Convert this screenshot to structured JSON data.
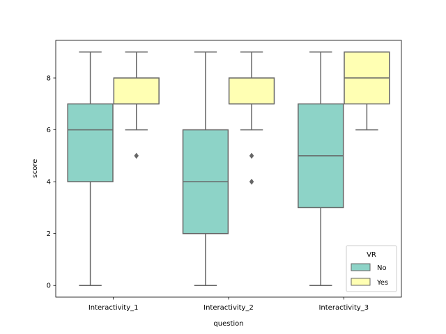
{
  "chart_data": {
    "type": "box",
    "title": "",
    "xlabel": "question",
    "ylabel": "score",
    "categories": [
      "Interactivity_1",
      "Interactivity_2",
      "Interactivity_3"
    ],
    "yticks": [
      0,
      2,
      4,
      6,
      8
    ],
    "ylim": [
      -0.45,
      9.45
    ],
    "grid": false,
    "legend": {
      "title": "VR",
      "placement": "lower-right"
    },
    "series": [
      {
        "name": "No",
        "color": "#8dd3c7",
        "boxes": [
          {
            "category": "Interactivity_1",
            "whisker_low": 0,
            "q1": 4,
            "median": 6,
            "q3": 7,
            "whisker_high": 9,
            "outliers": []
          },
          {
            "category": "Interactivity_2",
            "whisker_low": 0,
            "q1": 2,
            "median": 4,
            "q3": 6,
            "whisker_high": 9,
            "outliers": []
          },
          {
            "category": "Interactivity_3",
            "whisker_low": 0,
            "q1": 3,
            "median": 5,
            "q3": 7,
            "whisker_high": 9,
            "outliers": []
          }
        ]
      },
      {
        "name": "Yes",
        "color": "#ffffb3",
        "boxes": [
          {
            "category": "Interactivity_1",
            "whisker_low": 6,
            "q1": 7,
            "median": 7,
            "q3": 8,
            "whisker_high": 9,
            "outliers": [
              5
            ]
          },
          {
            "category": "Interactivity_2",
            "whisker_low": 6,
            "q1": 7,
            "median": 7,
            "q3": 8,
            "whisker_high": 9,
            "outliers": [
              5,
              4
            ]
          },
          {
            "category": "Interactivity_3",
            "whisker_low": 6,
            "q1": 7,
            "median": 8,
            "q3": 9,
            "whisker_high": 9,
            "outliers": []
          }
        ]
      }
    ]
  }
}
